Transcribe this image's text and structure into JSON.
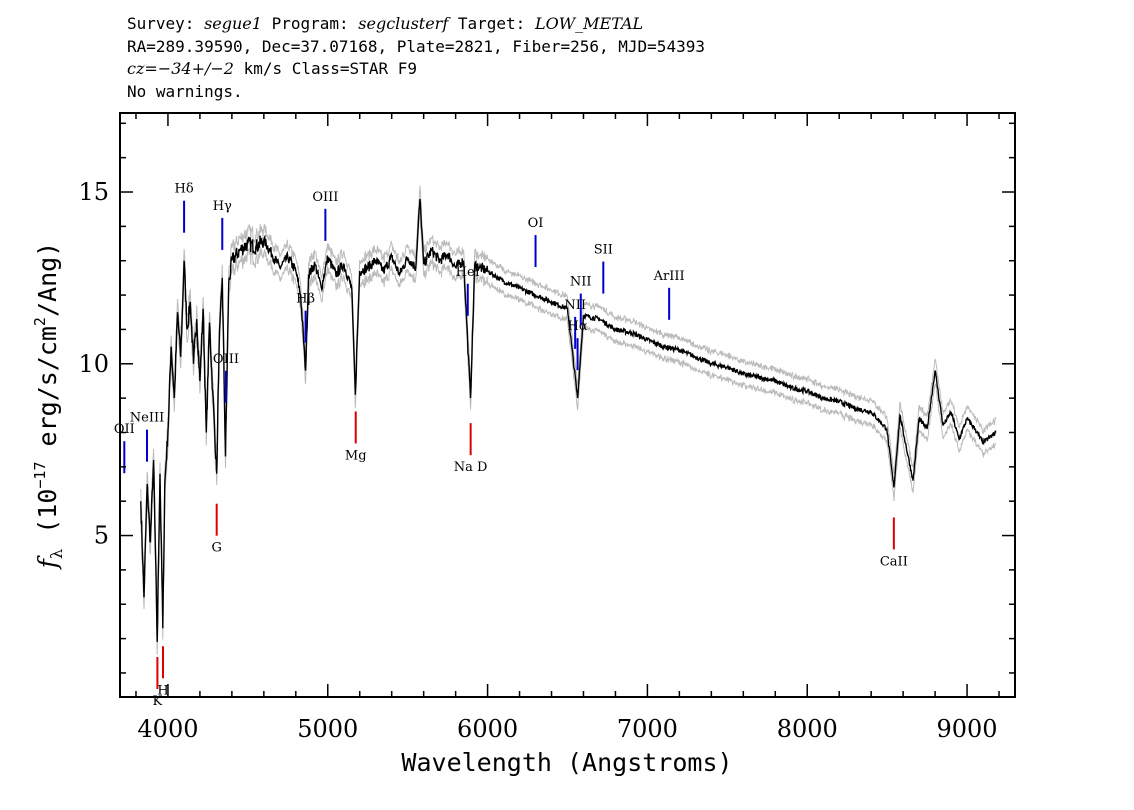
{
  "header": {
    "line1": {
      "survey_label": "Survey: ",
      "survey": "segue1",
      "program_label": " Program: ",
      "program": "segclusterf",
      "target_label": " Target: ",
      "target": "LOW_METAL"
    },
    "line2": "RA=289.39590, Dec=37.07168, Plate=2821, Fiber=256, MJD=54393",
    "line3": {
      "cz_label": "cz",
      "cz_value": "=−34+/−2",
      "cz_units": " km/s Class=STAR F9"
    },
    "line4": "No warnings."
  },
  "chart_data": {
    "type": "line",
    "title": "",
    "xlabel": "Wavelength (Angstroms)",
    "ylabel_prefix": "f",
    "ylabel_sub": "λ",
    "ylabel_main": " (10",
    "ylabel_exp": "−17",
    "ylabel_units": " erg/s/cm",
    "ylabel_exp2": "2",
    "ylabel_tail": "/Ang)",
    "xlim": [
      3700,
      9300
    ],
    "ylim": [
      0.3,
      17.3
    ],
    "xticks": [
      4000,
      5000,
      6000,
      7000,
      8000,
      9000
    ],
    "yticks": [
      5,
      10,
      15
    ],
    "xminor_step": 200,
    "yminor_step": 1,
    "grid": false,
    "colors": {
      "flux": "#000000",
      "error": "#bbbbbb",
      "emission": "#0000cc",
      "absorption": "#dd0000"
    },
    "series": [
      {
        "x": [
          3830,
          3850,
          3870,
          3890,
          3910,
          3933,
          3950,
          3968,
          3980,
          4000,
          4020,
          4040,
          4060,
          4080,
          4101,
          4120,
          4140,
          4160,
          4180,
          4200,
          4220,
          4240,
          4260,
          4280,
          4305,
          4320,
          4340,
          4360,
          4380,
          4400,
          4450,
          4500,
          4550,
          4600,
          4650,
          4700,
          4750,
          4800,
          4830,
          4861,
          4880,
          4920,
          4960,
          5000,
          5050,
          5100,
          5150,
          5172,
          5200,
          5250,
          5300,
          5350,
          5400,
          5450,
          5500,
          5550,
          5577,
          5600,
          5650,
          5700,
          5750,
          5800,
          5850,
          5893,
          5920,
          5950,
          6000,
          6100,
          6200,
          6300,
          6400,
          6500,
          6563,
          6600,
          6700,
          6800,
          6900,
          7000,
          7100,
          7200,
          7300,
          7400,
          7500,
          7600,
          7700,
          7800,
          7900,
          8000,
          8100,
          8200,
          8300,
          8400,
          8498,
          8542,
          8580,
          8662,
          8700,
          8750,
          8800,
          8850,
          8900,
          8950,
          9000,
          9050,
          9100,
          9180
        ],
        "y": [
          6.0,
          3.2,
          6.5,
          4.8,
          7.2,
          1.9,
          6.8,
          2.3,
          6.5,
          8.0,
          10.5,
          9.0,
          11.5,
          10.2,
          13.0,
          11.0,
          11.8,
          10.0,
          11.3,
          9.5,
          11.6,
          8.0,
          11.2,
          9.2,
          6.8,
          10.5,
          12.5,
          7.3,
          12.3,
          13.0,
          13.3,
          13.5,
          13.4,
          13.6,
          13.2,
          12.8,
          13.1,
          12.7,
          12.0,
          9.8,
          12.6,
          12.9,
          12.2,
          13.1,
          12.6,
          12.9,
          12.2,
          9.1,
          12.7,
          12.8,
          13.0,
          12.7,
          13.1,
          12.6,
          13.1,
          12.8,
          14.8,
          12.9,
          13.3,
          13.0,
          13.2,
          12.8,
          13.0,
          9.0,
          12.9,
          12.8,
          12.7,
          12.4,
          12.2,
          12.0,
          11.8,
          11.6,
          9.0,
          11.4,
          11.3,
          11.0,
          10.9,
          10.7,
          10.5,
          10.4,
          10.2,
          10.0,
          9.9,
          9.7,
          9.6,
          9.5,
          9.3,
          9.2,
          9.0,
          8.9,
          8.7,
          8.6,
          8.1,
          6.4,
          8.5,
          6.6,
          8.4,
          8.1,
          9.8,
          8.2,
          8.6,
          7.8,
          8.4,
          8.1,
          7.7,
          8.0
        ]
      }
    ],
    "line_markers": [
      {
        "label": "OII",
        "x": 3727,
        "kind": "emission"
      },
      {
        "label": "NeIII",
        "x": 3869,
        "kind": "emission"
      },
      {
        "label": "Hδ",
        "x": 4101,
        "kind": "emission"
      },
      {
        "label": "Hγ",
        "x": 4340,
        "kind": "emission"
      },
      {
        "label": "OIII",
        "x": 4363,
        "kind": "emission"
      },
      {
        "label": "Hβ",
        "x": 4861,
        "kind": "emission"
      },
      {
        "label": "OIII",
        "x": 4985,
        "kind": "emission"
      },
      {
        "label": "HeI",
        "x": 5876,
        "kind": "emission"
      },
      {
        "label": "OI",
        "x": 6300,
        "kind": "emission"
      },
      {
        "label": "NII",
        "x": 6548,
        "kind": "emission"
      },
      {
        "label": "Hα",
        "x": 6563,
        "kind": "emission"
      },
      {
        "label": "NII",
        "x": 6583,
        "kind": "emission"
      },
      {
        "label": "SII",
        "x": 6724,
        "kind": "emission"
      },
      {
        "label": "ArIII",
        "x": 7136,
        "kind": "emission"
      },
      {
        "label": "K",
        "x": 3934,
        "kind": "absorption"
      },
      {
        "label": "H",
        "x": 3969,
        "kind": "absorption"
      },
      {
        "label": "G",
        "x": 4305,
        "kind": "absorption"
      },
      {
        "label": "Mg",
        "x": 5175,
        "kind": "absorption"
      },
      {
        "label": "Na D",
        "x": 5894,
        "kind": "absorption"
      },
      {
        "label": "CaII",
        "x": 8542,
        "kind": "absorption"
      }
    ]
  }
}
